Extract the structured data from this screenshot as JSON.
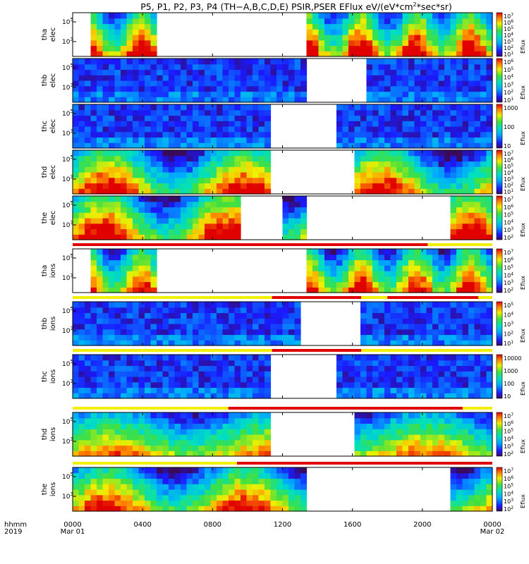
{
  "chart_data": {
    "type": "heatmap",
    "title": "P5, P1, P2, P3, P4 (TH−A,B,C,D,E) PSIR,PSER EFlux eV/(eV*cm",
    "title_sup": "2",
    "title_end": "*sec*sr)",
    "x_label_1": "hhmm",
    "x_label_2": "2019",
    "x_ticks": [
      "0000",
      "0400",
      "0800",
      "1200",
      "1600",
      "2000",
      "0000"
    ],
    "x_tick_hours": [
      0,
      4,
      8,
      12,
      16,
      20,
      24
    ],
    "x_dates": [
      "Mar 01",
      "Mar 02"
    ],
    "colorbar_label": "Eflux",
    "y_scale": "log",
    "panels": [
      {
        "probe": "tha",
        "species": "elec",
        "y_ticks": [
          "10",
          "10"
        ],
        "y_exponents": [
          "5",
          "3"
        ],
        "cbar_ticks": [
          "10",
          "10",
          "10",
          "10",
          "10",
          "10",
          "10"
        ],
        "cbar_exponents": [
          "7",
          "6",
          "5",
          "4",
          "3",
          "2",
          "1"
        ],
        "gaps": [
          [
            4.7,
            13.4
          ]
        ],
        "mode_bar": "none"
      },
      {
        "probe": "thb",
        "species": "elec",
        "y_ticks": [
          "10",
          "10"
        ],
        "y_exponents": [
          "5",
          "3"
        ],
        "cbar_ticks": [
          "10",
          "10",
          "10",
          "10",
          "10",
          "10"
        ],
        "cbar_exponents": [
          "6",
          "5",
          "4",
          "3",
          "2",
          "1"
        ],
        "gaps": [
          [
            13.3,
            16.7
          ]
        ],
        "mode_bar": "none"
      },
      {
        "probe": "thc",
        "species": "elec",
        "y_ticks": [
          "10",
          "10"
        ],
        "y_exponents": [
          "5",
          "3"
        ],
        "cbar_ticks": [
          "1000",
          "100",
          "10"
        ],
        "cbar_exponents": [],
        "gaps": [
          [
            11.4,
            15.0
          ]
        ],
        "mode_bar": "none"
      },
      {
        "probe": "thd",
        "species": "elec",
        "y_ticks": [
          "10",
          "10"
        ],
        "y_exponents": [
          "5",
          "3"
        ],
        "cbar_ticks": [
          "10",
          "10",
          "10",
          "10",
          "10",
          "10",
          "10"
        ],
        "cbar_exponents": [
          "7",
          "6",
          "5",
          "4",
          "3",
          "2",
          "1"
        ],
        "gaps": [
          [
            11.3,
            16.1
          ]
        ],
        "mode_bar": "none"
      },
      {
        "probe": "the",
        "species": "elec",
        "y_ticks": [
          "10",
          "10"
        ],
        "y_exponents": [
          "5",
          "3"
        ],
        "cbar_ticks": [
          "10",
          "10",
          "10",
          "10",
          "10",
          "10"
        ],
        "cbar_exponents": [
          "7",
          "6",
          "5",
          "4",
          "3",
          "2"
        ],
        "gaps": [
          [
            9.6,
            12.0
          ],
          [
            13.4,
            21.5
          ]
        ],
        "mode_bar": "none"
      },
      {
        "probe": "tha",
        "species": "ions",
        "y_ticks": [
          "10",
          "10"
        ],
        "y_exponents": [
          "5",
          "3"
        ],
        "cbar_ticks": [
          "10",
          "10",
          "10",
          "10",
          "10",
          "10"
        ],
        "cbar_exponents": [
          "7",
          "6",
          "5",
          "4",
          "3",
          "2"
        ],
        "gaps": [
          [
            4.7,
            13.4
          ]
        ],
        "mode_bar": "split",
        "mode_split_hour": 20.3
      },
      {
        "probe": "thb",
        "species": "ions",
        "y_ticks": [
          "10",
          "10"
        ],
        "y_exponents": [
          "5",
          "3"
        ],
        "cbar_ticks": [
          "10",
          "10",
          "10",
          "10",
          "10"
        ],
        "cbar_exponents": [
          "5",
          "4",
          "3",
          "2",
          "1"
        ],
        "gaps": [
          [
            13.2,
            16.5
          ]
        ],
        "mode_bar": "split2",
        "mode_red_ranges": [
          [
            11.4,
            16.5
          ],
          [
            18.0,
            23.2
          ]
        ]
      },
      {
        "probe": "thc",
        "species": "ions",
        "y_ticks": [
          "10",
          "10"
        ],
        "y_exponents": [
          "5",
          "3"
        ],
        "cbar_ticks": [
          "10000",
          "1000",
          "100",
          "10"
        ],
        "cbar_exponents": [],
        "gaps": [
          [
            11.4,
            15.1
          ]
        ],
        "mode_bar": "split2",
        "mode_red_ranges": [
          [
            11.4,
            16.5
          ]
        ]
      },
      {
        "probe": "thd",
        "species": "ions",
        "y_ticks": [
          "10",
          "10"
        ],
        "y_exponents": [
          "5",
          "3"
        ],
        "cbar_ticks": [
          "10",
          "10",
          "10",
          "10",
          "10",
          "10"
        ],
        "cbar_exponents": [
          "7",
          "6",
          "5",
          "4",
          "3",
          "2"
        ],
        "gaps": [
          [
            11.3,
            16.1
          ]
        ],
        "mode_bar": "split2",
        "mode_red_ranges": [
          [
            8.9,
            22.3
          ]
        ]
      },
      {
        "probe": "the",
        "species": "ions",
        "y_ticks": [
          "10",
          "10"
        ],
        "y_exponents": [
          "5",
          "3"
        ],
        "cbar_ticks": [
          "10",
          "10",
          "10",
          "10",
          "10",
          "10"
        ],
        "cbar_exponents": [
          "7",
          "6",
          "5",
          "4",
          "3",
          "2"
        ],
        "gaps": [
          [
            13.4,
            21.5
          ]
        ],
        "mode_bar": "split2",
        "mode_red_ranges": [
          [
            9.4,
            24.0
          ]
        ]
      }
    ]
  }
}
